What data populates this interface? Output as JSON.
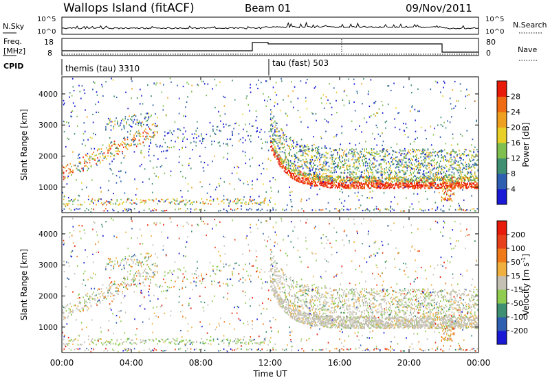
{
  "header": {
    "station": "Wallops Island (fitACF)",
    "beam": "Beam 01",
    "date": "09/Nov/2011"
  },
  "noise_panel": {
    "left_label": "N.Sky",
    "left_ticks": [
      "10^5",
      "10^0"
    ],
    "right_label": "N.Search",
    "right_ticks": [
      "10^5",
      "10^0"
    ]
  },
  "freq_panel": {
    "left_label_1": "Freq.",
    "left_label_2": "[MHz]",
    "left_ticks": [
      "18",
      "8"
    ],
    "right_label": "Nave",
    "right_ticks": [
      "80",
      "0"
    ]
  },
  "cpid_panel": {
    "label": "CPID",
    "modes": [
      {
        "name": "themis (tau) 3310",
        "start_hour": 0
      },
      {
        "name": "tau (fast) 503",
        "start_hour": 12
      }
    ]
  },
  "chart_data": [
    {
      "type": "heatmap",
      "title": "Power",
      "ylabel": "Slant Range [km]",
      "xlabel": "Time UT",
      "ylim": [
        180,
        4550
      ],
      "xlim": [
        0,
        24
      ],
      "y_ticks": [
        "1000",
        "2000",
        "3000",
        "4000"
      ],
      "x_ticks": [
        "00:00",
        "04:00",
        "08:00",
        "12:00",
        "16:00",
        "20:00",
        "00:00"
      ],
      "colorbar": {
        "label": "Power [dB]",
        "ticks": [
          "4",
          "8",
          "12",
          "16",
          "20",
          "24",
          "28"
        ],
        "colors": [
          "#1a1ad6",
          "#2f5fb0",
          "#3f8f72",
          "#7fbf50",
          "#e8d028",
          "#f0a020",
          "#f06a14",
          "#e81a0a"
        ]
      }
    },
    {
      "type": "heatmap",
      "title": "Velocity",
      "ylabel": "Slant Range [km]",
      "xlabel": "Time UT",
      "ylim": [
        180,
        4550
      ],
      "xlim": [
        0,
        24
      ],
      "y_ticks": [
        "1000",
        "2000",
        "3000",
        "4000"
      ],
      "x_ticks": [
        "00:00",
        "04:00",
        "08:00",
        "12:00",
        "16:00",
        "20:00",
        "00:00"
      ],
      "colorbar": {
        "label": "Velocity [m s",
        "label_sup": "-1",
        "label_end": "]",
        "ticks": [
          "200",
          "100",
          "50",
          "15",
          "-15",
          "-50",
          "-100",
          "-200"
        ],
        "colors": [
          "#1a1ad6",
          "#2f5fb0",
          "#3f8f72",
          "#8fcc50",
          "#c4c0b4",
          "#f0b040",
          "#f07a1a",
          "#e8401a",
          "#e81a0a"
        ]
      }
    }
  ],
  "x_axis": {
    "title": "Time UT",
    "tick_labels": [
      "00:00",
      "04:00",
      "08:00",
      "12:00",
      "16:00",
      "20:00",
      "00:00"
    ]
  }
}
